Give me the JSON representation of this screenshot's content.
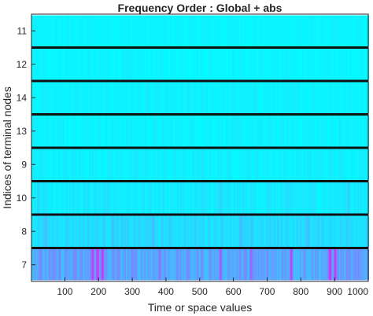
{
  "chart_data": {
    "type": "heatmap",
    "title": "Frequency Order : Global + abs",
    "xlabel": "Time or space values",
    "ylabel": "Indices of terminal nodes",
    "xlim": [
      1,
      1000
    ],
    "xticks": [
      100,
      200,
      300,
      400,
      500,
      600,
      700,
      800,
      900,
      1000
    ],
    "xtick_labels": [
      "100",
      "200",
      "300",
      "400",
      "500",
      "600",
      "700",
      "800",
      "900",
      "1000"
    ],
    "rows": [
      {
        "label": "11",
        "base_level": 0.04,
        "variation": 0.05,
        "peaks": []
      },
      {
        "label": "12",
        "base_level": 0.04,
        "variation": 0.06,
        "peaks": []
      },
      {
        "label": "14",
        "base_level": 0.05,
        "variation": 0.06,
        "peaks": []
      },
      {
        "label": "13",
        "base_level": 0.05,
        "variation": 0.07,
        "peaks": []
      },
      {
        "label": "9",
        "base_level": 0.06,
        "variation": 0.08,
        "peaks": []
      },
      {
        "label": "10",
        "base_level": 0.08,
        "variation": 0.1,
        "peaks": [
          [
            20,
            0.22
          ],
          [
            560,
            0.2
          ],
          [
            940,
            0.22
          ]
        ]
      },
      {
        "label": "8",
        "base_level": 0.14,
        "variation": 0.13,
        "peaks": [
          [
            40,
            0.3
          ],
          [
            240,
            0.28
          ],
          [
            360,
            0.3
          ],
          [
            620,
            0.32
          ],
          [
            820,
            0.3
          ]
        ]
      },
      {
        "label": "7",
        "base_level": 0.35,
        "variation": 0.25,
        "peaks": [
          [
            180,
            0.9
          ],
          [
            195,
            0.95
          ],
          [
            210,
            0.9
          ],
          [
            380,
            0.65
          ],
          [
            560,
            0.75
          ],
          [
            650,
            0.7
          ],
          [
            770,
            0.85
          ],
          [
            885,
            0.9
          ],
          [
            900,
            0.85
          ],
          [
            1000,
            0.7
          ]
        ]
      }
    ],
    "colormap": [
      "#00ffff",
      "#ff00ff"
    ],
    "grid": false,
    "legend": "none"
  }
}
